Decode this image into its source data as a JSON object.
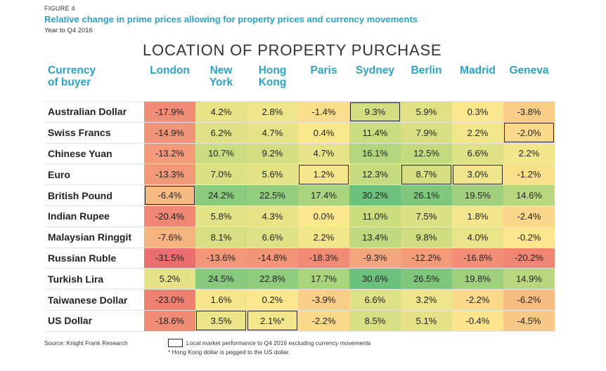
{
  "figure_label": "FIGURE 4",
  "figure_title": "Relative change in prime prices allowing for property prices and currency movements",
  "figure_subtitle": "Year to Q4 2016",
  "chart_data": {
    "type": "table",
    "title": "LOCATION OF PROPERTY PURCHASE",
    "row_header": [
      "Currency",
      "of buyer"
    ],
    "columns": [
      {
        "lines": [
          "London"
        ]
      },
      {
        "lines": [
          "New",
          "York"
        ]
      },
      {
        "lines": [
          "Hong",
          "Kong"
        ]
      },
      {
        "lines": [
          "Paris"
        ]
      },
      {
        "lines": [
          "Sydney"
        ]
      },
      {
        "lines": [
          "Berlin"
        ]
      },
      {
        "lines": [
          "Madrid"
        ]
      },
      {
        "lines": [
          "Geneva"
        ]
      }
    ],
    "rows": [
      {
        "label": "Australian Dollar",
        "values": [
          -17.9,
          4.2,
          2.8,
          -1.4,
          9.3,
          5.9,
          0.3,
          -3.8
        ],
        "display": [
          "-17.9%",
          "4.2%",
          "2.8%",
          "-1.4%",
          "9.3%",
          "5.9%",
          "0.3%",
          "-3.8%"
        ],
        "highlight": 4
      },
      {
        "label": "Swiss Francs",
        "values": [
          -14.9,
          6.2,
          4.7,
          0.4,
          11.4,
          7.9,
          2.2,
          -2.0
        ],
        "display": [
          "-14.9%",
          "6.2%",
          "4.7%",
          "0.4%",
          "11.4%",
          "7.9%",
          "2.2%",
          "-2.0%"
        ],
        "highlight": 7
      },
      {
        "label": "Chinese Yuan",
        "values": [
          -13.2,
          10.7,
          9.2,
          4.7,
          16.1,
          12.5,
          6.6,
          2.2
        ],
        "display": [
          "-13.2%",
          "10.7%",
          "9.2%",
          "4.7%",
          "16.1%",
          "12.5%",
          "6.6%",
          "2.2%"
        ],
        "highlight": null
      },
      {
        "label": "Euro",
        "values": [
          -13.3,
          7.0,
          5.6,
          1.2,
          12.3,
          8.7,
          3.0,
          -1.2
        ],
        "display": [
          "-13.3%",
          "7.0%",
          "5.6%",
          "1.2%",
          "12.3%",
          "8.7%",
          "3.0%",
          "-1.2%"
        ],
        "highlight": [
          3,
          5,
          6
        ]
      },
      {
        "label": "British Pound",
        "values": [
          -6.4,
          24.2,
          22.5,
          17.4,
          30.2,
          26.1,
          19.5,
          14.6
        ],
        "display": [
          "-6.4%",
          "24.2%",
          "22.5%",
          "17.4%",
          "30.2%",
          "26.1%",
          "19.5%",
          "14.6%"
        ],
        "highlight": 0
      },
      {
        "label": "Indian Rupee",
        "values": [
          -20.4,
          5.8,
          4.3,
          0.0,
          11.0,
          7.5,
          1.8,
          -2.4
        ],
        "display": [
          "-20.4%",
          "5.8%",
          "4.3%",
          "0.0%",
          "11.0%",
          "7.5%",
          "1.8%",
          "-2.4%"
        ],
        "highlight": null
      },
      {
        "label": "Malaysian Ringgit",
        "values": [
          -7.6,
          8.1,
          6.6,
          2.2,
          13.4,
          9.8,
          4.0,
          -0.2
        ],
        "display": [
          "-7.6%",
          "8.1%",
          "6.6%",
          "2.2%",
          "13.4%",
          "9.8%",
          "4.0%",
          "-0.2%"
        ],
        "highlight": null
      },
      {
        "label": "Russian Ruble",
        "values": [
          -31.5,
          -13.6,
          -14.8,
          -18.3,
          -9.3,
          -12.2,
          -16.8,
          -20.2
        ],
        "display": [
          "-31.5%",
          "-13.6%",
          "-14.8%",
          "-18.3%",
          "-9.3%",
          "-12.2%",
          "-16.8%",
          "-20.2%"
        ],
        "highlight": null
      },
      {
        "label": "Turkish Lira",
        "values": [
          5.2,
          24.5,
          22.8,
          17.7,
          30.6,
          26.5,
          19.8,
          14.9
        ],
        "display": [
          "5.2%",
          "24.5%",
          "22.8%",
          "17.7%",
          "30.6%",
          "26.5%",
          "19.8%",
          "14.9%"
        ],
        "highlight": null
      },
      {
        "label": "Taiwanese Dollar",
        "values": [
          -23.0,
          1.6,
          0.2,
          -3.9,
          6.6,
          3.2,
          -2.2,
          -6.2
        ],
        "display": [
          "-23.0%",
          "1.6%",
          "0.2%",
          "-3.9%",
          "6.6%",
          "3.2%",
          "-2.2%",
          "-6.2%"
        ],
        "highlight": null
      },
      {
        "label": "US Dollar",
        "values": [
          -18.6,
          3.5,
          2.1,
          -2.2,
          8.5,
          5.1,
          -0.4,
          -4.5
        ],
        "display": [
          "-18.6%",
          "3.5%",
          "2.1%*",
          "-2.2%",
          "8.5%",
          "5.1%",
          "-0.4%",
          "-4.5%"
        ],
        "highlight": [
          1,
          2
        ]
      }
    ],
    "colors": {
      "negative_strong": "#ec6d6d",
      "negative_mid": "#f3a27c",
      "near_zero": "#fce88e",
      "positive_mid": "#c6db7e",
      "positive_strong": "#6cc27d"
    }
  },
  "source": "Source: Knight Frank Research",
  "legend_text": "Local market performance to Q4 2016 excluding currency movements",
  "footnote": "* Hong Kong dollar is pegged to the US dollar."
}
